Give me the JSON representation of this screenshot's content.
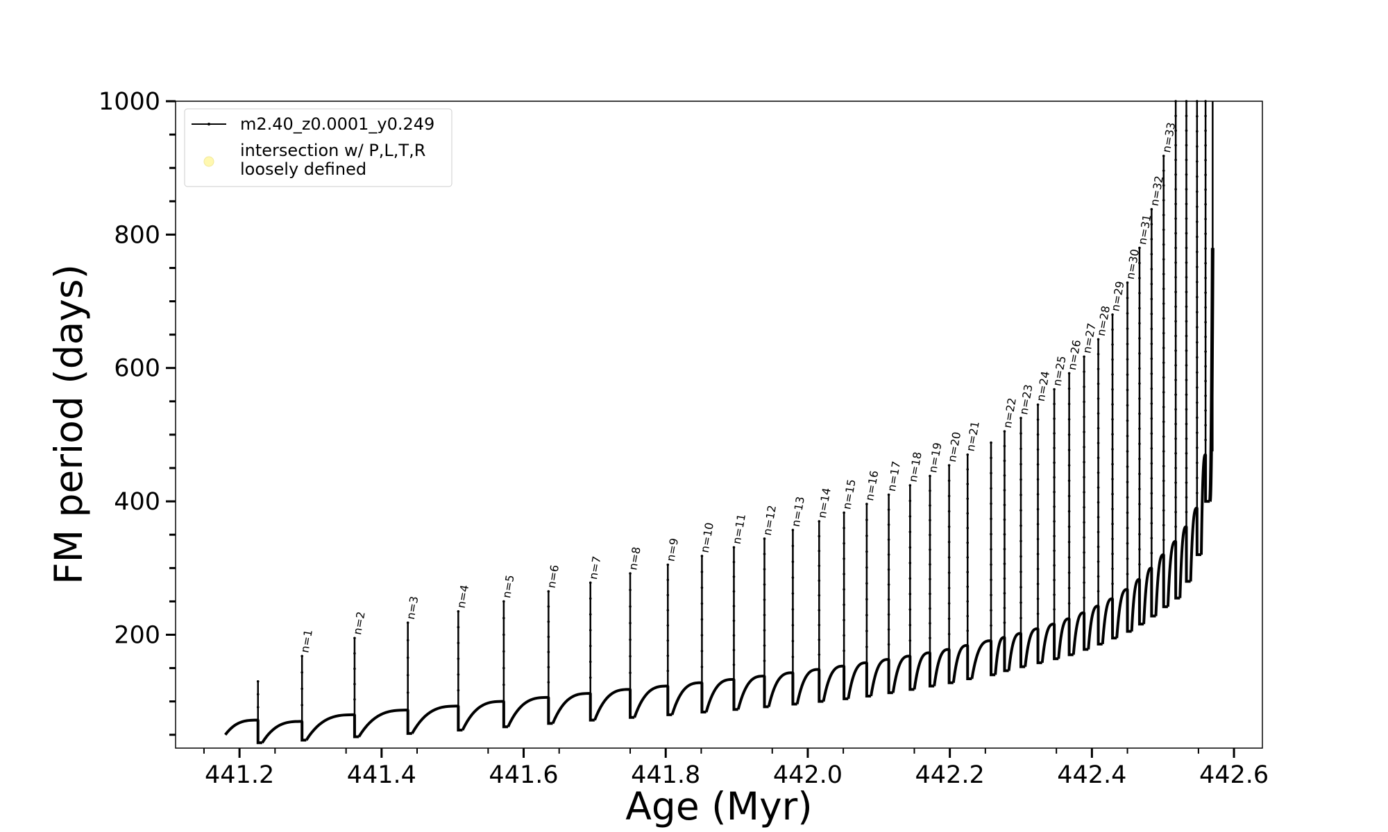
{
  "chart_data": {
    "type": "line",
    "xlabel": "Age (Myr)",
    "ylabel": "FM period (days)",
    "xlim": [
      441.11,
      442.64
    ],
    "ylim": [
      30,
      1000
    ],
    "xticks": [
      441.2,
      441.4,
      441.6,
      441.8,
      442.0,
      442.2,
      442.4,
      442.6
    ],
    "xtick_labels": [
      "441.2",
      "441.4",
      "441.6",
      "441.8",
      "442.0",
      "442.2",
      "442.4",
      "442.6"
    ],
    "yticks": [
      200,
      400,
      600,
      800,
      1000
    ],
    "ytick_labels": [
      "200",
      "400",
      "600",
      "800",
      "1000"
    ],
    "grid": false,
    "legend": {
      "placement": "upper-left",
      "entries": [
        {
          "label": "m2.40_z0.0001_y0.249",
          "marker": "line-with-dots",
          "color": "#000000"
        },
        {
          "label": "intersection w/ P,L,T,R",
          "label2": "loosely defined",
          "marker": "circle",
          "color": "#fff8b0"
        }
      ]
    },
    "series": [
      {
        "name": "m2.40_z0.0001_y0.249",
        "color": "#000000",
        "start_age": 441.18,
        "start_period": 50,
        "end_age": 442.57,
        "pulses": [
          {
            "label": "n=1",
            "age": 441.288,
            "base": 70,
            "peak": 168,
            "dip": 42
          },
          {
            "label": "n=2",
            "age": 441.362,
            "base": 80,
            "peak": 195,
            "dip": 47
          },
          {
            "label": "n=3",
            "age": 441.437,
            "base": 87,
            "peak": 218,
            "dip": 52
          },
          {
            "label": "n=4",
            "age": 441.508,
            "base": 93,
            "peak": 235,
            "dip": 57
          },
          {
            "label": "n=5",
            "age": 441.572,
            "base": 100,
            "peak": 250,
            "dip": 62
          },
          {
            "label": "n=6",
            "age": 441.635,
            "base": 106,
            "peak": 265,
            "dip": 67
          },
          {
            "label": "n=7",
            "age": 441.694,
            "base": 112,
            "peak": 278,
            "dip": 72
          },
          {
            "label": "n=8",
            "age": 441.75,
            "base": 118,
            "peak": 292,
            "dip": 76
          },
          {
            "label": "n=9",
            "age": 441.803,
            "base": 123,
            "peak": 305,
            "dip": 80
          },
          {
            "label": "n=10",
            "age": 441.851,
            "base": 128,
            "peak": 318,
            "dip": 84
          },
          {
            "label": "n=11",
            "age": 441.896,
            "base": 133,
            "peak": 331,
            "dip": 88
          },
          {
            "label": "n=12",
            "age": 441.939,
            "base": 138,
            "peak": 344,
            "dip": 92
          },
          {
            "label": "n=13",
            "age": 441.979,
            "base": 143,
            "peak": 357,
            "dip": 96
          },
          {
            "label": "n=14",
            "age": 442.016,
            "base": 148,
            "peak": 370,
            "dip": 100
          },
          {
            "label": "n=15",
            "age": 442.051,
            "base": 153,
            "peak": 383,
            "dip": 104
          },
          {
            "label": "n=16",
            "age": 442.083,
            "base": 158,
            "peak": 396,
            "dip": 108
          },
          {
            "label": "n=17",
            "age": 442.114,
            "base": 163,
            "peak": 410,
            "dip": 113
          },
          {
            "label": "n=18",
            "age": 442.144,
            "base": 168,
            "peak": 424,
            "dip": 118
          },
          {
            "label": "n=19",
            "age": 442.172,
            "base": 173,
            "peak": 438,
            "dip": 123
          },
          {
            "label": "n=20",
            "age": 442.199,
            "base": 178,
            "peak": 454,
            "dip": 128
          },
          {
            "label": "n=21",
            "age": 442.225,
            "base": 184,
            "peak": 470,
            "dip": 134
          },
          {
            "label": "n=22",
            "age": 442.277,
            "base": 196,
            "peak": 505,
            "dip": 146
          },
          {
            "label": "n=23",
            "age": 442.3,
            "base": 202,
            "peak": 525,
            "dip": 152
          },
          {
            "label": "n=24",
            "age": 442.324,
            "base": 209,
            "peak": 545,
            "dip": 158
          },
          {
            "label": "n=25",
            "age": 442.347,
            "base": 216,
            "peak": 568,
            "dip": 164
          },
          {
            "label": "n=26",
            "age": 442.368,
            "base": 224,
            "peak": 592,
            "dip": 170
          },
          {
            "label": "n=27",
            "age": 442.389,
            "base": 233,
            "peak": 617,
            "dip": 178
          },
          {
            "label": "n=28",
            "age": 442.409,
            "base": 243,
            "peak": 643,
            "dip": 186
          },
          {
            "label": "n=29",
            "age": 442.429,
            "base": 254,
            "peak": 680,
            "dip": 195
          },
          {
            "label": "n=30",
            "age": 442.45,
            "base": 268,
            "peak": 728,
            "dip": 205
          },
          {
            "label": "n=31",
            "age": 442.467,
            "base": 283,
            "peak": 780,
            "dip": 216
          },
          {
            "label": "n=32",
            "age": 442.484,
            "base": 300,
            "peak": 838,
            "dip": 228
          },
          {
            "label": "n=33",
            "age": 442.501,
            "base": 320,
            "peak": 918,
            "dip": 242
          }
        ],
        "unlabeled_pulses": [
          {
            "age": 441.226,
            "base": 72,
            "peak": 130,
            "dip": 38
          },
          {
            "age": 442.258,
            "base": 191,
            "peak": 488,
            "dip": 140
          },
          {
            "age": 442.518,
            "base": 340,
            "peak": 1000,
            "dip": 255
          },
          {
            "age": 442.533,
            "base": 362,
            "peak": 1000,
            "dip": 280
          },
          {
            "age": 442.548,
            "base": 390,
            "peak": 1000,
            "dip": 320
          },
          {
            "age": 442.56,
            "base": 470,
            "peak": 1000,
            "dip": 400
          }
        ]
      }
    ]
  }
}
